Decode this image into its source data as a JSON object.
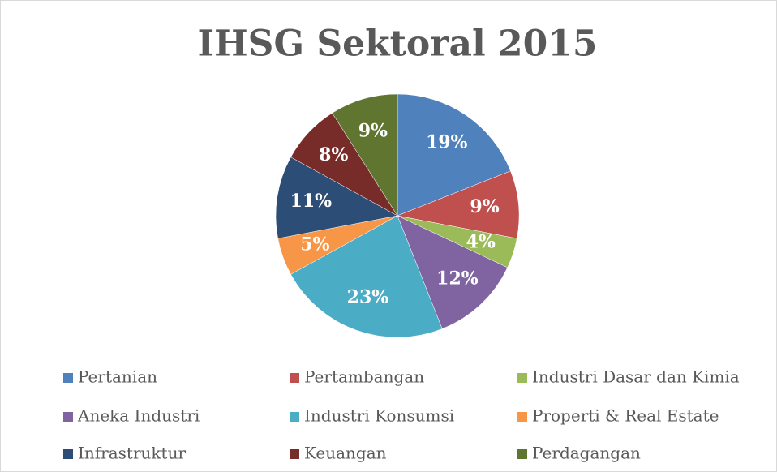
{
  "chart_data": {
    "type": "pie",
    "title": "IHSG Sektoral 2015",
    "categories": [
      "Pertanian",
      "Pertambangan",
      "Industri Dasar dan Kimia",
      "Aneka Industri",
      "Industri Konsumsi",
      "Properti & Real Estate",
      "Infrastruktur",
      "Keuangan",
      "Perdagangan"
    ],
    "values": [
      19,
      9,
      4,
      12,
      23,
      5,
      11,
      8,
      9
    ],
    "value_labels": [
      "19%",
      "9%",
      "4%",
      "12%",
      "23%",
      "5%",
      "11%",
      "8%",
      "9%"
    ],
    "colors": [
      "#4f81bd",
      "#c0504d",
      "#9bbb59",
      "#8064a2",
      "#4bacc6",
      "#f79646",
      "#2c4d75",
      "#772c2a",
      "#5f7530"
    ],
    "legend": "bottom"
  }
}
